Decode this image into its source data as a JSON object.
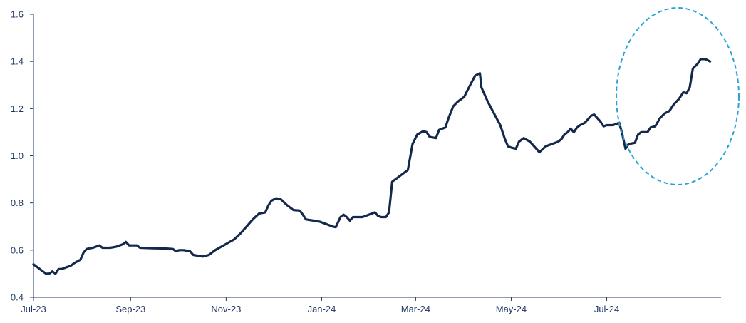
{
  "chart_data": {
    "type": "line",
    "title": "",
    "xlabel": "",
    "ylabel": "",
    "ylim": [
      0.4,
      1.6
    ],
    "yticks": [
      "0.4",
      "0.6",
      "0.8",
      "1.0",
      "1.2",
      "1.4",
      "1.6"
    ],
    "xticks": [
      "Jul-23",
      "Sep-23",
      "Nov-23",
      "Jan-24",
      "Mar-24",
      "May-24",
      "Jul-24"
    ],
    "grid": false,
    "legend": "none",
    "series": [
      {
        "color": "#14284b",
        "points": [
          [
            "2023-07-01",
            0.54
          ],
          [
            "2023-07-03",
            0.53
          ],
          [
            "2023-07-05",
            0.52
          ],
          [
            "2023-07-07",
            0.51
          ],
          [
            "2023-07-09",
            0.5
          ],
          [
            "2023-07-11",
            0.5
          ],
          [
            "2023-07-13",
            0.51
          ],
          [
            "2023-07-15",
            0.5
          ],
          [
            "2023-07-17",
            0.52
          ],
          [
            "2023-07-19",
            0.52
          ],
          [
            "2023-07-21",
            0.525
          ],
          [
            "2023-07-23",
            0.53
          ],
          [
            "2023-07-25",
            0.535
          ],
          [
            "2023-07-27",
            0.545
          ],
          [
            "2023-07-31",
            0.56
          ],
          [
            "2023-08-02",
            0.59
          ],
          [
            "2023-08-04",
            0.605
          ],
          [
            "2023-08-08",
            0.61
          ],
          [
            "2023-08-12",
            0.62
          ],
          [
            "2023-08-14",
            0.61
          ],
          [
            "2023-08-19",
            0.61
          ],
          [
            "2023-08-23",
            0.615
          ],
          [
            "2023-08-27",
            0.625
          ],
          [
            "2023-08-29",
            0.635
          ],
          [
            "2023-08-31",
            0.62
          ],
          [
            "2023-09-05",
            0.62
          ],
          [
            "2023-09-07",
            0.61
          ],
          [
            "2023-09-15",
            0.608
          ],
          [
            "2023-09-23",
            0.607
          ],
          [
            "2023-09-28",
            0.605
          ],
          [
            "2023-09-30",
            0.595
          ],
          [
            "2023-10-02",
            0.6
          ],
          [
            "2023-10-05",
            0.6
          ],
          [
            "2023-10-09",
            0.595
          ],
          [
            "2023-10-11",
            0.58
          ],
          [
            "2023-10-17",
            0.573
          ],
          [
            "2023-10-21",
            0.58
          ],
          [
            "2023-10-25",
            0.6
          ],
          [
            "2023-10-29",
            0.615
          ],
          [
            "2023-11-02",
            0.63
          ],
          [
            "2023-11-06",
            0.645
          ],
          [
            "2023-11-10",
            0.67
          ],
          [
            "2023-11-14",
            0.7
          ],
          [
            "2023-11-18",
            0.73
          ],
          [
            "2023-11-22",
            0.755
          ],
          [
            "2023-11-26",
            0.76
          ],
          [
            "2023-11-28",
            0.79
          ],
          [
            "2023-11-30",
            0.81
          ],
          [
            "2023-12-03",
            0.82
          ],
          [
            "2023-12-06",
            0.815
          ],
          [
            "2023-12-10",
            0.79
          ],
          [
            "2023-12-14",
            0.77
          ],
          [
            "2023-12-18",
            0.768
          ],
          [
            "2023-12-20",
            0.75
          ],
          [
            "2023-12-22",
            0.73
          ],
          [
            "2023-12-27",
            0.725
          ],
          [
            "2023-12-31",
            0.72
          ],
          [
            "2024-01-04",
            0.71
          ],
          [
            "2024-01-08",
            0.7
          ],
          [
            "2024-01-10",
            0.697
          ],
          [
            "2024-01-13",
            0.74
          ],
          [
            "2024-01-15",
            0.75
          ],
          [
            "2024-01-17",
            0.74
          ],
          [
            "2024-01-19",
            0.725
          ],
          [
            "2024-01-21",
            0.74
          ],
          [
            "2024-01-27",
            0.74
          ],
          [
            "2024-01-31",
            0.75
          ],
          [
            "2024-02-04",
            0.76
          ],
          [
            "2024-02-06",
            0.745
          ],
          [
            "2024-02-08",
            0.74
          ],
          [
            "2024-02-11",
            0.74
          ],
          [
            "2024-02-13",
            0.76
          ],
          [
            "2024-02-15",
            0.89
          ],
          [
            "2024-02-25",
            0.94
          ],
          [
            "2024-02-28",
            1.05
          ],
          [
            "2024-03-02",
            1.09
          ],
          [
            "2024-03-06",
            1.105
          ],
          [
            "2024-03-08",
            1.1
          ],
          [
            "2024-03-10",
            1.08
          ],
          [
            "2024-03-14",
            1.075
          ],
          [
            "2024-03-16",
            1.11
          ],
          [
            "2024-03-20",
            1.12
          ],
          [
            "2024-03-22",
            1.16
          ],
          [
            "2024-03-25",
            1.21
          ],
          [
            "2024-03-28",
            1.23
          ],
          [
            "2024-04-01",
            1.25
          ],
          [
            "2024-04-04",
            1.29
          ],
          [
            "2024-04-08",
            1.34
          ],
          [
            "2024-04-11",
            1.35
          ],
          [
            "2024-04-12",
            1.29
          ],
          [
            "2024-04-16",
            1.23
          ],
          [
            "2024-04-20",
            1.18
          ],
          [
            "2024-04-24",
            1.13
          ],
          [
            "2024-04-27",
            1.07
          ],
          [
            "2024-04-29",
            1.04
          ],
          [
            "2024-05-01",
            1.035
          ],
          [
            "2024-05-04",
            1.03
          ],
          [
            "2024-05-06",
            1.06
          ],
          [
            "2024-05-09",
            1.075
          ],
          [
            "2024-05-13",
            1.06
          ],
          [
            "2024-05-17",
            1.03
          ],
          [
            "2024-05-19",
            1.015
          ],
          [
            "2024-05-23",
            1.04
          ],
          [
            "2024-05-27",
            1.05
          ],
          [
            "2024-05-31",
            1.06
          ],
          [
            "2024-06-02",
            1.07
          ],
          [
            "2024-06-04",
            1.09
          ],
          [
            "2024-06-06",
            1.1
          ],
          [
            "2024-06-08",
            1.115
          ],
          [
            "2024-06-10",
            1.1
          ],
          [
            "2024-06-12",
            1.12
          ],
          [
            "2024-06-14",
            1.13
          ],
          [
            "2024-06-17",
            1.14
          ],
          [
            "2024-06-21",
            1.17
          ],
          [
            "2024-06-23",
            1.175
          ],
          [
            "2024-06-25",
            1.16
          ],
          [
            "2024-06-27",
            1.145
          ],
          [
            "2024-06-29",
            1.125
          ],
          [
            "2024-07-01",
            1.13
          ],
          [
            "2024-07-05",
            1.13
          ],
          [
            "2024-07-09",
            1.14
          ],
          [
            "2024-07-11",
            1.09
          ],
          [
            "2024-07-13",
            1.03
          ],
          [
            "2024-07-15",
            1.05
          ],
          [
            "2024-07-19",
            1.055
          ],
          [
            "2024-07-21",
            1.09
          ],
          [
            "2024-07-23",
            1.1
          ],
          [
            "2024-07-27",
            1.1
          ],
          [
            "2024-07-29",
            1.12
          ],
          [
            "2024-08-01",
            1.125
          ],
          [
            "2024-08-04",
            1.16
          ],
          [
            "2024-08-07",
            1.18
          ],
          [
            "2024-08-10",
            1.19
          ],
          [
            "2024-08-13",
            1.22
          ],
          [
            "2024-08-16",
            1.24
          ],
          [
            "2024-08-19",
            1.27
          ],
          [
            "2024-08-21",
            1.265
          ],
          [
            "2024-08-23",
            1.29
          ],
          [
            "2024-08-25",
            1.37
          ],
          [
            "2024-08-28",
            1.39
          ],
          [
            "2024-08-30",
            1.41
          ],
          [
            "2024-09-02",
            1.41
          ],
          [
            "2024-09-05",
            1.4
          ]
        ]
      }
    ],
    "annotations": [
      {
        "type": "dashed-ellipse",
        "color": "#29a3d3"
      }
    ],
    "axis_color": "#1f3864",
    "tick_label_color": "#1f3864"
  }
}
